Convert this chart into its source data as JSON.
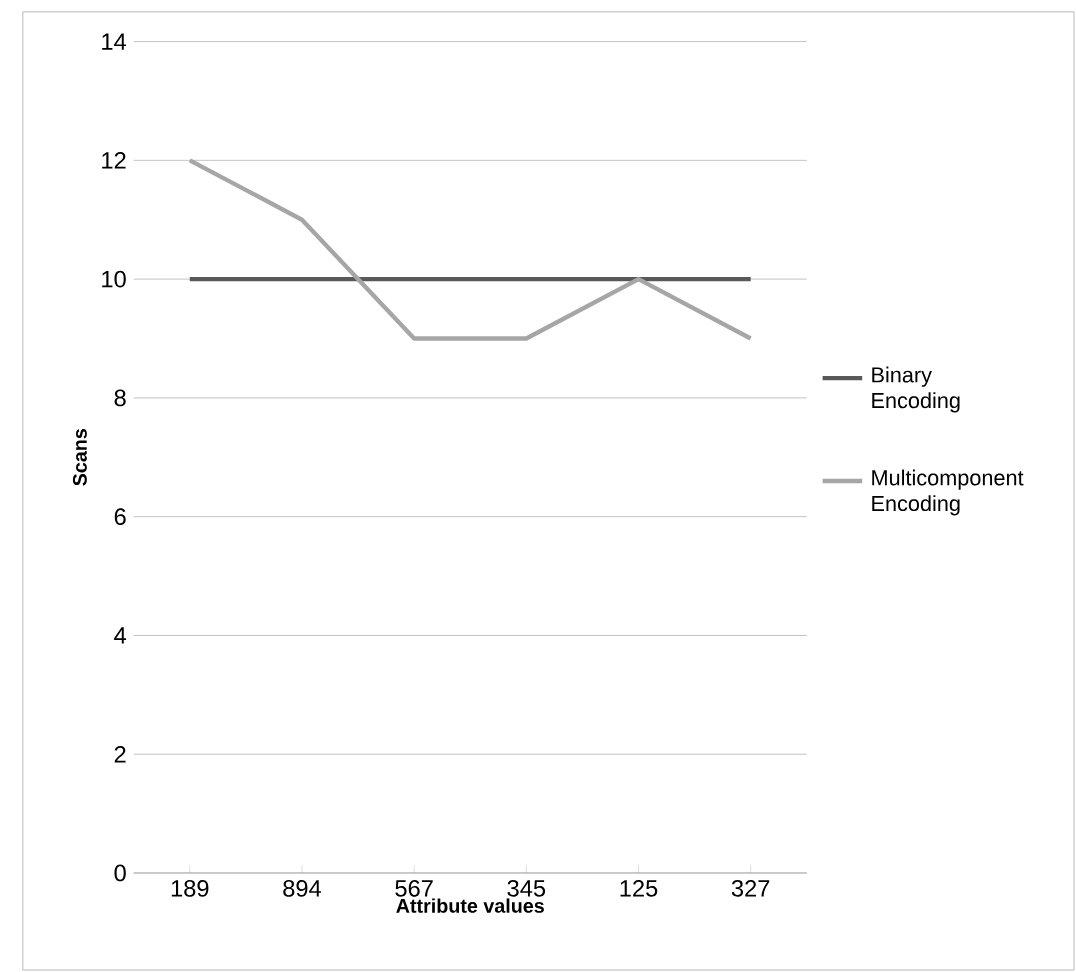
{
  "chart_data": {
    "type": "line",
    "xlabel": "Attribute values",
    "ylabel": "Scans",
    "categories": [
      "189",
      "894",
      "567",
      "345",
      "125",
      "327"
    ],
    "series": [
      {
        "name": "Binary Encoding",
        "color": "#595959",
        "values": [
          10,
          10,
          10,
          10,
          10,
          10
        ]
      },
      {
        "name": "Multicomponent Encoding",
        "color": "#a6a6a6",
        "values": [
          12,
          11,
          9,
          9,
          10,
          9
        ]
      }
    ],
    "ylim": [
      0,
      14
    ],
    "yticks": [
      0,
      2,
      4,
      6,
      8,
      10,
      12,
      14
    ],
    "grid": "y",
    "legend": "right",
    "marker": "none",
    "line_style": "solid"
  }
}
